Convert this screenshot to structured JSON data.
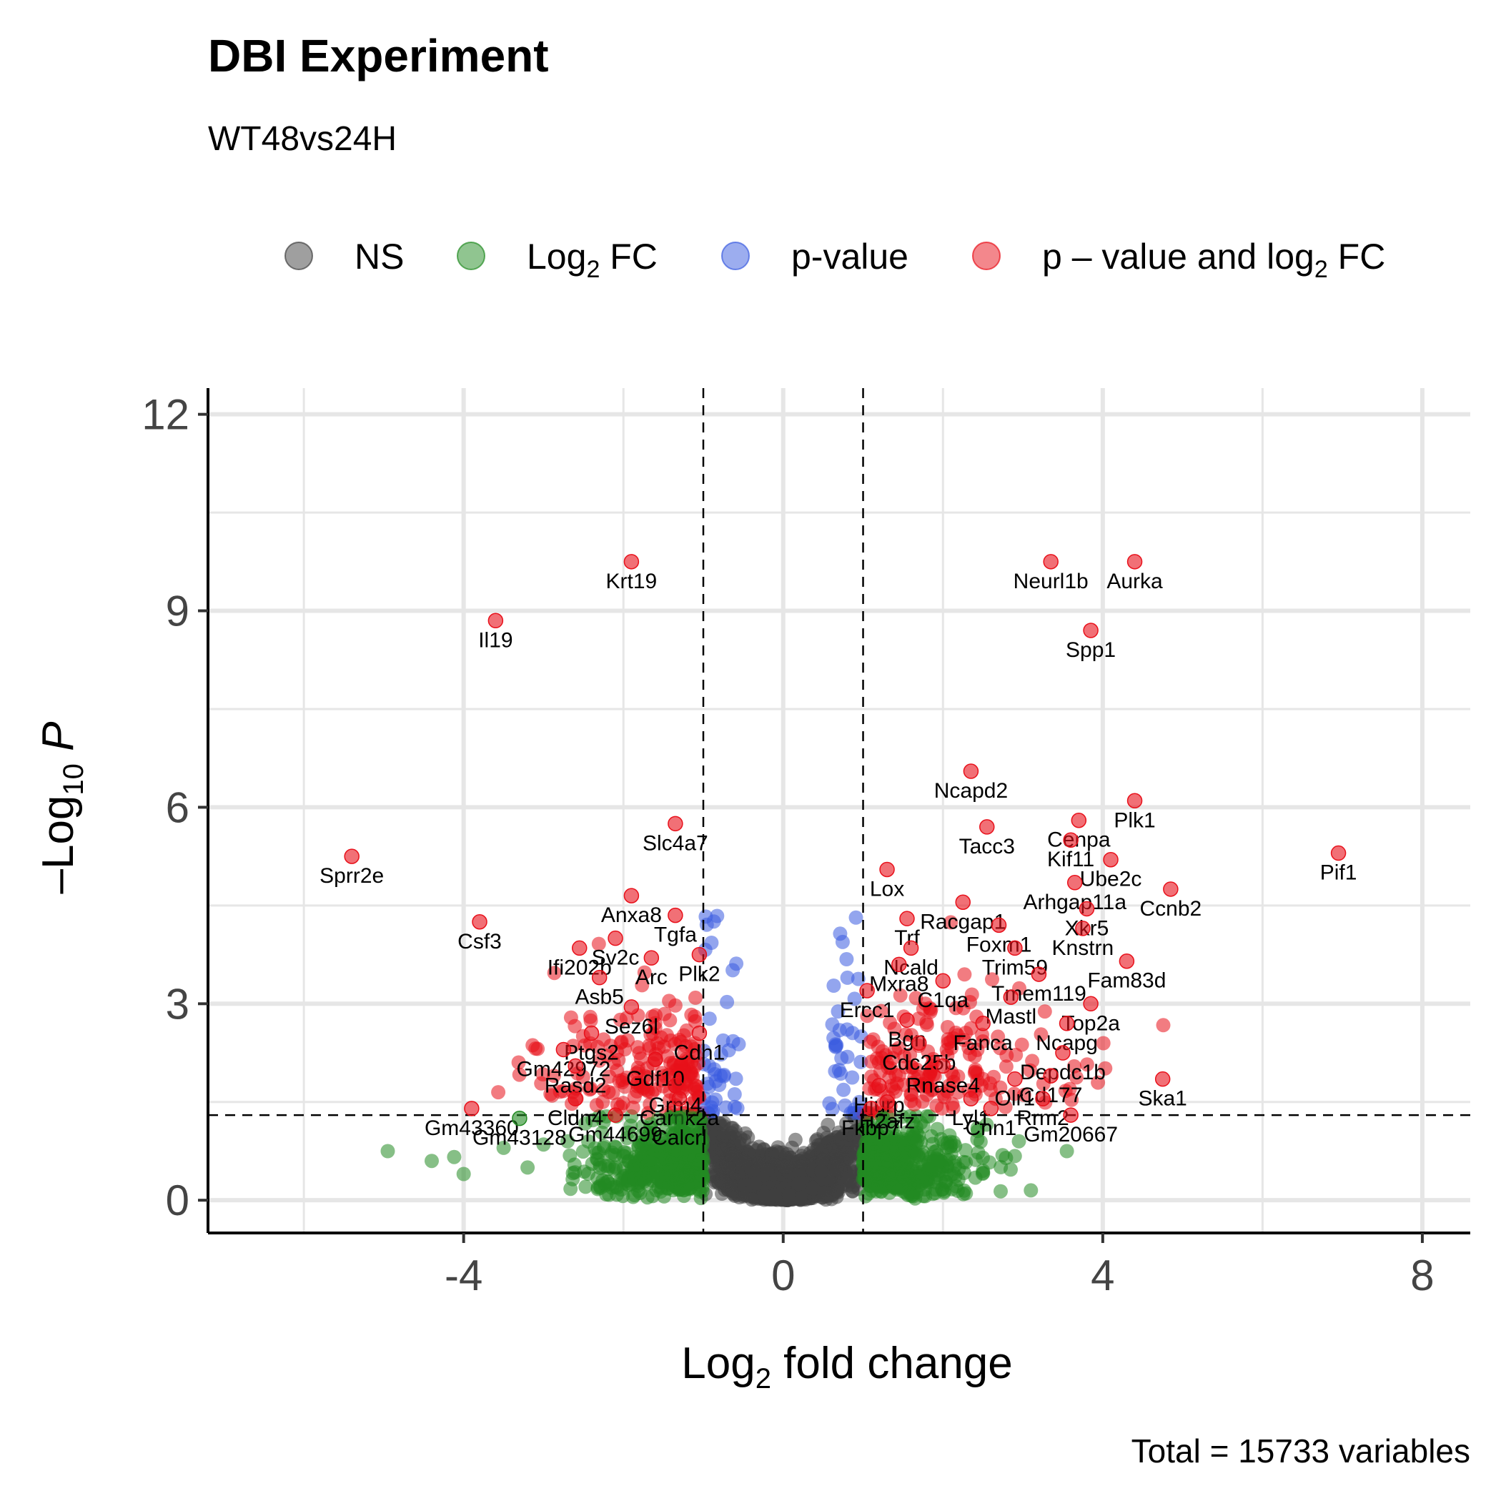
{
  "title": "DBI Experiment",
  "subtitle": "WT48vs24H",
  "caption": "Total = 15733 variables",
  "legend": {
    "items": [
      {
        "label": "NS",
        "color": "#404040"
      },
      {
        "label": "Log",
        "sub": "2",
        "suffix": " FC",
        "color": "#228B22"
      },
      {
        "label": "p-value",
        "color": "#3A5BE0"
      },
      {
        "label": "p – value and log",
        "sub": "2",
        "suffix": " FC",
        "color": "#E8101A"
      }
    ]
  },
  "chart_data": {
    "type": "scatter",
    "title": "DBI Experiment",
    "subtitle": "WT48vs24H",
    "xlabel": "Log2 fold change",
    "ylabel": "–Log10 P",
    "xlabel_parts": {
      "pre": "Log",
      "sub": "2",
      "post": " fold change"
    },
    "ylabel_parts": {
      "pre": "–Log",
      "sub": "10",
      "post": " P"
    },
    "xlim": [
      -7.2,
      8.6
    ],
    "ylim": [
      -0.5,
      12.4
    ],
    "x_ticks": [
      -4,
      0,
      4,
      8
    ],
    "x_tick_labels": [
      "-4",
      "0",
      "4",
      "8"
    ],
    "y_ticks": [
      0,
      3,
      6,
      9,
      12
    ],
    "y_tick_labels": [
      "0",
      "3",
      "6",
      "9",
      "12"
    ],
    "fc_cutoff": 1,
    "p_cutoff": 1.3,
    "grid": true,
    "legend_position": "top",
    "total_variables": 15733,
    "series": [
      {
        "name": "NS",
        "color": "#404040"
      },
      {
        "name": "Log2 FC",
        "color": "#228B22"
      },
      {
        "name": "p-value",
        "color": "#3A5BE0"
      },
      {
        "name": "p – value and log2 FC",
        "color": "#E8101A"
      }
    ],
    "labeled_points": [
      {
        "gene": "Krt19",
        "x": -1.9,
        "y": 9.75
      },
      {
        "gene": "Il19",
        "x": -3.6,
        "y": 8.85
      },
      {
        "gene": "Neurl1b",
        "x": 3.35,
        "y": 9.75
      },
      {
        "gene": "Aurka",
        "x": 4.4,
        "y": 9.75
      },
      {
        "gene": "Spp1",
        "x": 3.85,
        "y": 8.7
      },
      {
        "gene": "Ncapd2",
        "x": 2.35,
        "y": 6.55
      },
      {
        "gene": "Plk1",
        "x": 4.4,
        "y": 6.1
      },
      {
        "gene": "Cenpa",
        "x": 3.7,
        "y": 5.8
      },
      {
        "gene": "Slc4a7",
        "x": -1.35,
        "y": 5.75
      },
      {
        "gene": "Tacc3",
        "x": 2.55,
        "y": 5.7
      },
      {
        "gene": "Kif11",
        "x": 3.6,
        "y": 5.5
      },
      {
        "gene": "Ube2c",
        "x": 4.1,
        "y": 5.2
      },
      {
        "gene": "Sprr2e",
        "x": -5.4,
        "y": 5.25
      },
      {
        "gene": "Pif1",
        "x": 6.95,
        "y": 5.3
      },
      {
        "gene": "Lox",
        "x": 1.3,
        "y": 5.05
      },
      {
        "gene": "Arhgap11a",
        "x": 3.65,
        "y": 4.85
      },
      {
        "gene": "Racgap1",
        "x": 2.25,
        "y": 4.55
      },
      {
        "gene": "Ccnb2",
        "x": 4.85,
        "y": 4.75
      },
      {
        "gene": "Anxa8",
        "x": -1.9,
        "y": 4.65
      },
      {
        "gene": "Trf",
        "x": 1.55,
        "y": 4.3
      },
      {
        "gene": "Xkr5",
        "x": 3.8,
        "y": 4.45
      },
      {
        "gene": "Csf3",
        "x": -3.8,
        "y": 4.25
      },
      {
        "gene": "Tgfa",
        "x": -1.35,
        "y": 4.35
      },
      {
        "gene": "Sv2c",
        "x": -2.1,
        "y": 4.0
      },
      {
        "gene": "Foxm1",
        "x": 2.7,
        "y": 4.2
      },
      {
        "gene": "Knstrn",
        "x": 3.75,
        "y": 4.15
      },
      {
        "gene": "Ncald",
        "x": 1.6,
        "y": 3.85
      },
      {
        "gene": "Plk2",
        "x": -1.05,
        "y": 3.75
      },
      {
        "gene": "Arc",
        "x": -1.65,
        "y": 3.7
      },
      {
        "gene": "Ifi202b",
        "x": -2.55,
        "y": 3.85
      },
      {
        "gene": "Trim59",
        "x": 2.9,
        "y": 3.85
      },
      {
        "gene": "Fam83d",
        "x": 4.3,
        "y": 3.65
      },
      {
        "gene": "Mxra8",
        "x": 1.45,
        "y": 3.6
      },
      {
        "gene": "Asb5",
        "x": -2.3,
        "y": 3.4
      },
      {
        "gene": "Tmem119",
        "x": 3.2,
        "y": 3.45
      },
      {
        "gene": "C1qa",
        "x": 2.0,
        "y": 3.35
      },
      {
        "gene": "Ercc1",
        "x": 1.05,
        "y": 3.2
      },
      {
        "gene": "Mastl",
        "x": 2.85,
        "y": 3.1
      },
      {
        "gene": "Top2a",
        "x": 3.85,
        "y": 3.0
      },
      {
        "gene": "Sez6l",
        "x": -1.9,
        "y": 2.95
      },
      {
        "gene": "Bgn",
        "x": 1.55,
        "y": 2.75
      },
      {
        "gene": "Fanca",
        "x": 2.5,
        "y": 2.7
      },
      {
        "gene": "Ncapg",
        "x": 3.55,
        "y": 2.7
      },
      {
        "gene": "Ptgs2",
        "x": -2.4,
        "y": 2.55
      },
      {
        "gene": "Cdh1",
        "x": -1.05,
        "y": 2.55
      },
      {
        "gene": "Cdc25b",
        "x": 1.7,
        "y": 2.4
      },
      {
        "gene": "Gm42972",
        "x": -2.75,
        "y": 2.3
      },
      {
        "gene": "Gdf10",
        "x": -1.6,
        "y": 2.15
      },
      {
        "gene": "Depdc1b",
        "x": 3.5,
        "y": 2.25
      },
      {
        "gene": "Rnase4",
        "x": 2.0,
        "y": 2.05
      },
      {
        "gene": "Rasd2",
        "x": -2.6,
        "y": 2.05
      },
      {
        "gene": "Olr1",
        "x": 2.9,
        "y": 1.85
      },
      {
        "gene": "Cd177",
        "x": 3.35,
        "y": 1.9
      },
      {
        "gene": "Grm4",
        "x": -1.35,
        "y": 1.75
      },
      {
        "gene": "Hjurp",
        "x": 1.2,
        "y": 1.75
      },
      {
        "gene": "Ska1",
        "x": 4.75,
        "y": 1.85
      },
      {
        "gene": "Cldn4",
        "x": -2.6,
        "y": 1.55
      },
      {
        "gene": "Camk2a",
        "x": -1.3,
        "y": 1.55
      },
      {
        "gene": "H2afz",
        "x": 1.3,
        "y": 1.5
      },
      {
        "gene": "Lyl1",
        "x": 2.35,
        "y": 1.55
      },
      {
        "gene": "Rrm2",
        "x": 3.25,
        "y": 1.55
      },
      {
        "gene": "Gm43360",
        "x": -3.9,
        "y": 1.4
      },
      {
        "gene": "Gm44699",
        "x": -2.1,
        "y": 1.3
      },
      {
        "gene": "Calcrl",
        "x": -1.3,
        "y": 1.25
      },
      {
        "gene": "Fkbp7",
        "x": 1.1,
        "y": 1.4
      },
      {
        "gene": "Cnn1",
        "x": 2.6,
        "y": 1.4
      },
      {
        "gene": "Gm20667",
        "x": 3.6,
        "y": 1.3
      },
      {
        "gene": "Gm43128",
        "x": -3.3,
        "y": 1.25
      }
    ]
  }
}
